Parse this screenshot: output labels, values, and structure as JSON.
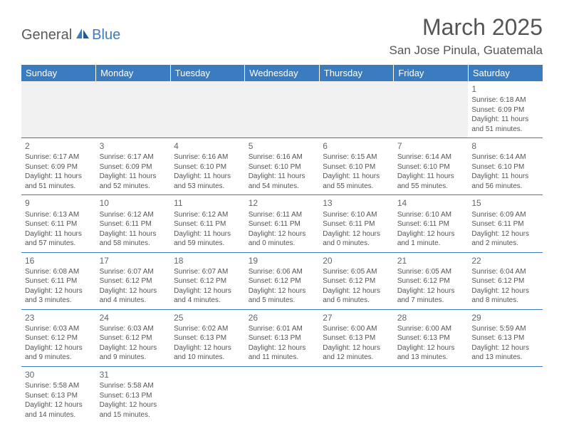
{
  "logo": {
    "part1": "General",
    "part2": "Blue"
  },
  "title": "March 2025",
  "location": "San Jose Pinula, Guatemala",
  "colors": {
    "header_bg": "#3b7bbf",
    "header_text": "#ffffff",
    "body_text": "#555555",
    "border": "#3b7bbf",
    "empty_bg": "#f0f0f0"
  },
  "weekdays": [
    "Sunday",
    "Monday",
    "Tuesday",
    "Wednesday",
    "Thursday",
    "Friday",
    "Saturday"
  ],
  "weeks": [
    [
      null,
      null,
      null,
      null,
      null,
      null,
      {
        "d": "1",
        "sr": "6:18 AM",
        "ss": "6:09 PM",
        "dl": "11 hours and 51 minutes."
      }
    ],
    [
      {
        "d": "2",
        "sr": "6:17 AM",
        "ss": "6:09 PM",
        "dl": "11 hours and 51 minutes."
      },
      {
        "d": "3",
        "sr": "6:17 AM",
        "ss": "6:09 PM",
        "dl": "11 hours and 52 minutes."
      },
      {
        "d": "4",
        "sr": "6:16 AM",
        "ss": "6:10 PM",
        "dl": "11 hours and 53 minutes."
      },
      {
        "d": "5",
        "sr": "6:16 AM",
        "ss": "6:10 PM",
        "dl": "11 hours and 54 minutes."
      },
      {
        "d": "6",
        "sr": "6:15 AM",
        "ss": "6:10 PM",
        "dl": "11 hours and 55 minutes."
      },
      {
        "d": "7",
        "sr": "6:14 AM",
        "ss": "6:10 PM",
        "dl": "11 hours and 55 minutes."
      },
      {
        "d": "8",
        "sr": "6:14 AM",
        "ss": "6:10 PM",
        "dl": "11 hours and 56 minutes."
      }
    ],
    [
      {
        "d": "9",
        "sr": "6:13 AM",
        "ss": "6:11 PM",
        "dl": "11 hours and 57 minutes."
      },
      {
        "d": "10",
        "sr": "6:12 AM",
        "ss": "6:11 PM",
        "dl": "11 hours and 58 minutes."
      },
      {
        "d": "11",
        "sr": "6:12 AM",
        "ss": "6:11 PM",
        "dl": "11 hours and 59 minutes."
      },
      {
        "d": "12",
        "sr": "6:11 AM",
        "ss": "6:11 PM",
        "dl": "12 hours and 0 minutes."
      },
      {
        "d": "13",
        "sr": "6:10 AM",
        "ss": "6:11 PM",
        "dl": "12 hours and 0 minutes."
      },
      {
        "d": "14",
        "sr": "6:10 AM",
        "ss": "6:11 PM",
        "dl": "12 hours and 1 minute."
      },
      {
        "d": "15",
        "sr": "6:09 AM",
        "ss": "6:11 PM",
        "dl": "12 hours and 2 minutes."
      }
    ],
    [
      {
        "d": "16",
        "sr": "6:08 AM",
        "ss": "6:11 PM",
        "dl": "12 hours and 3 minutes."
      },
      {
        "d": "17",
        "sr": "6:07 AM",
        "ss": "6:12 PM",
        "dl": "12 hours and 4 minutes."
      },
      {
        "d": "18",
        "sr": "6:07 AM",
        "ss": "6:12 PM",
        "dl": "12 hours and 4 minutes."
      },
      {
        "d": "19",
        "sr": "6:06 AM",
        "ss": "6:12 PM",
        "dl": "12 hours and 5 minutes."
      },
      {
        "d": "20",
        "sr": "6:05 AM",
        "ss": "6:12 PM",
        "dl": "12 hours and 6 minutes."
      },
      {
        "d": "21",
        "sr": "6:05 AM",
        "ss": "6:12 PM",
        "dl": "12 hours and 7 minutes."
      },
      {
        "d": "22",
        "sr": "6:04 AM",
        "ss": "6:12 PM",
        "dl": "12 hours and 8 minutes."
      }
    ],
    [
      {
        "d": "23",
        "sr": "6:03 AM",
        "ss": "6:12 PM",
        "dl": "12 hours and 9 minutes."
      },
      {
        "d": "24",
        "sr": "6:03 AM",
        "ss": "6:12 PM",
        "dl": "12 hours and 9 minutes."
      },
      {
        "d": "25",
        "sr": "6:02 AM",
        "ss": "6:13 PM",
        "dl": "12 hours and 10 minutes."
      },
      {
        "d": "26",
        "sr": "6:01 AM",
        "ss": "6:13 PM",
        "dl": "12 hours and 11 minutes."
      },
      {
        "d": "27",
        "sr": "6:00 AM",
        "ss": "6:13 PM",
        "dl": "12 hours and 12 minutes."
      },
      {
        "d": "28",
        "sr": "6:00 AM",
        "ss": "6:13 PM",
        "dl": "12 hours and 13 minutes."
      },
      {
        "d": "29",
        "sr": "5:59 AM",
        "ss": "6:13 PM",
        "dl": "12 hours and 13 minutes."
      }
    ],
    [
      {
        "d": "30",
        "sr": "5:58 AM",
        "ss": "6:13 PM",
        "dl": "12 hours and 14 minutes."
      },
      {
        "d": "31",
        "sr": "5:58 AM",
        "ss": "6:13 PM",
        "dl": "12 hours and 15 minutes."
      },
      null,
      null,
      null,
      null,
      null
    ]
  ],
  "labels": {
    "sunrise": "Sunrise:",
    "sunset": "Sunset:",
    "daylight": "Daylight:"
  }
}
